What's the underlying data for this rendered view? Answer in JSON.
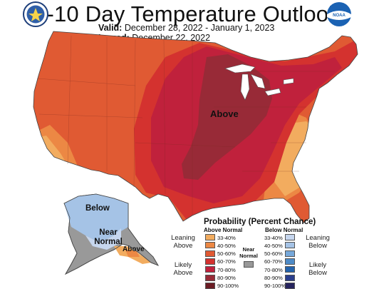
{
  "title": "6-10 Day Temperature Outlook",
  "valid": {
    "label": "Valid:",
    "value": "December 28, 2022 - January 1, 2023"
  },
  "issued": {
    "label": "Issued:",
    "value": "December 22, 2022"
  },
  "logos": {
    "left": "noaa-commerce-seal-icon",
    "right": "noaa-logo-icon",
    "right_text": "NOAA"
  },
  "map_labels": {
    "conus_center": "Above",
    "alaska_north": "Below",
    "alaska_center": "Near Normal",
    "alaska_south": "Above"
  },
  "legend": {
    "title": "Probability (Percent Chance)",
    "above_header": "Above Normal",
    "below_header": "Below Normal",
    "near_label": "Near Normal",
    "near_color": "#999999",
    "leaning_above": "Leaning Above",
    "likely_above": "Likely Above",
    "leaning_below": "Leaning Below",
    "likely_below": "Likely Below",
    "above_bins": [
      {
        "label": "33-40%",
        "color": "#F2AC5F"
      },
      {
        "label": "40-50%",
        "color": "#EC8844"
      },
      {
        "label": "50-60%",
        "color": "#E05A33"
      },
      {
        "label": "60-70%",
        "color": "#D4322F"
      },
      {
        "label": "70-80%",
        "color": "#C0213C"
      },
      {
        "label": "80-90%",
        "color": "#982A37"
      },
      {
        "label": "90-100%",
        "color": "#6B1C24"
      }
    ],
    "below_bins": [
      {
        "label": "33-40%",
        "color": "#C6D6EE"
      },
      {
        "label": "40-50%",
        "color": "#A5C3E6"
      },
      {
        "label": "50-60%",
        "color": "#76A8DA"
      },
      {
        "label": "60-70%",
        "color": "#4E8BC7"
      },
      {
        "label": "70-80%",
        "color": "#2463AC"
      },
      {
        "label": "80-90%",
        "color": "#2A3E8C"
      },
      {
        "label": "90-100%",
        "color": "#27245E"
      }
    ]
  }
}
